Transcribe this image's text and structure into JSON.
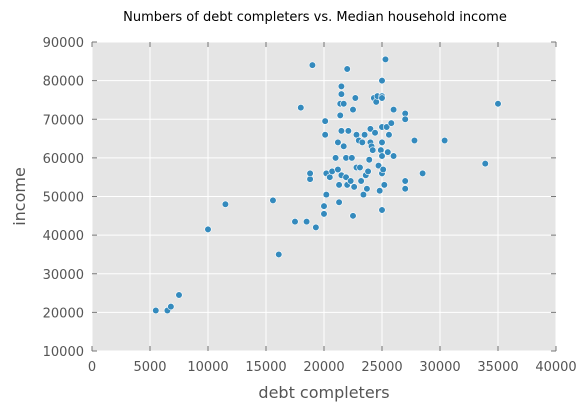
{
  "chart_data": {
    "type": "scatter",
    "title": "Numbers of debt completers vs. Median household income",
    "xlabel": "debt completers",
    "ylabel": "income",
    "xlim": [
      0,
      40000
    ],
    "ylim": [
      10000,
      90000
    ],
    "xticks": [
      "0",
      "5000",
      "10000",
      "15000",
      "20000",
      "25000",
      "30000",
      "35000",
      "40000"
    ],
    "yticks": [
      "10000",
      "20000",
      "30000",
      "40000",
      "50000",
      "60000",
      "70000",
      "80000",
      "90000"
    ],
    "grid": true,
    "background_color": "#e5e5e5",
    "point_color": "#348abd",
    "points": [
      [
        5500,
        20500
      ],
      [
        6500,
        20500
      ],
      [
        6800,
        21500
      ],
      [
        7500,
        24500
      ],
      [
        10000,
        41500
      ],
      [
        11500,
        48000
      ],
      [
        15600,
        49000
      ],
      [
        16100,
        35000
      ],
      [
        17500,
        43500
      ],
      [
        18000,
        73000
      ],
      [
        18500,
        43500
      ],
      [
        18800,
        54500
      ],
      [
        18800,
        56000
      ],
      [
        19000,
        84000
      ],
      [
        19300,
        42000
      ],
      [
        20000,
        47500
      ],
      [
        20000,
        45500
      ],
      [
        20100,
        66000
      ],
      [
        20100,
        69500
      ],
      [
        20200,
        50500
      ],
      [
        20200,
        56000
      ],
      [
        20500,
        55000
      ],
      [
        20700,
        56500
      ],
      [
        21000,
        60000
      ],
      [
        21200,
        64000
      ],
      [
        21200,
        57000
      ],
      [
        21300,
        53000
      ],
      [
        21300,
        48500
      ],
      [
        21400,
        71000
      ],
      [
        21400,
        74000
      ],
      [
        21500,
        76500
      ],
      [
        21500,
        78500
      ],
      [
        21500,
        67000
      ],
      [
        21500,
        55500
      ],
      [
        21700,
        74000
      ],
      [
        21700,
        63000
      ],
      [
        21900,
        60000
      ],
      [
        21900,
        55000
      ],
      [
        22000,
        83000
      ],
      [
        22000,
        53000
      ],
      [
        22100,
        67000
      ],
      [
        22300,
        54000
      ],
      [
        22400,
        60000
      ],
      [
        22500,
        72500
      ],
      [
        22500,
        45000
      ],
      [
        22600,
        52500
      ],
      [
        22700,
        75500
      ],
      [
        22800,
        66000
      ],
      [
        22800,
        57500
      ],
      [
        23000,
        64500
      ],
      [
        23100,
        57500
      ],
      [
        23200,
        54000
      ],
      [
        23300,
        64000
      ],
      [
        23400,
        50500
      ],
      [
        23500,
        66000
      ],
      [
        23600,
        55500
      ],
      [
        23700,
        52000
      ],
      [
        23800,
        56500
      ],
      [
        23900,
        59500
      ],
      [
        24000,
        67500
      ],
      [
        24000,
        64000
      ],
      [
        24100,
        63000
      ],
      [
        24200,
        62000
      ],
      [
        24300,
        75500
      ],
      [
        24400,
        66500
      ],
      [
        24500,
        74500
      ],
      [
        24600,
        76000
      ],
      [
        24700,
        58000
      ],
      [
        24800,
        51500
      ],
      [
        24900,
        62000
      ],
      [
        25000,
        80000
      ],
      [
        25000,
        76000
      ],
      [
        25000,
        75500
      ],
      [
        25000,
        68000
      ],
      [
        25000,
        64000
      ],
      [
        25000,
        60500
      ],
      [
        25000,
        56000
      ],
      [
        25000,
        46500
      ],
      [
        25100,
        57000
      ],
      [
        25200,
        53000
      ],
      [
        25300,
        85500
      ],
      [
        25400,
        68000
      ],
      [
        25500,
        61500
      ],
      [
        25600,
        66000
      ],
      [
        25800,
        69000
      ],
      [
        26000,
        72500
      ],
      [
        26000,
        60500
      ],
      [
        27000,
        71500
      ],
      [
        27000,
        70000
      ],
      [
        27000,
        54000
      ],
      [
        27000,
        52000
      ],
      [
        27800,
        64500
      ],
      [
        28500,
        56000
      ],
      [
        30400,
        64500
      ],
      [
        33900,
        58500
      ],
      [
        35000,
        74000
      ]
    ]
  }
}
